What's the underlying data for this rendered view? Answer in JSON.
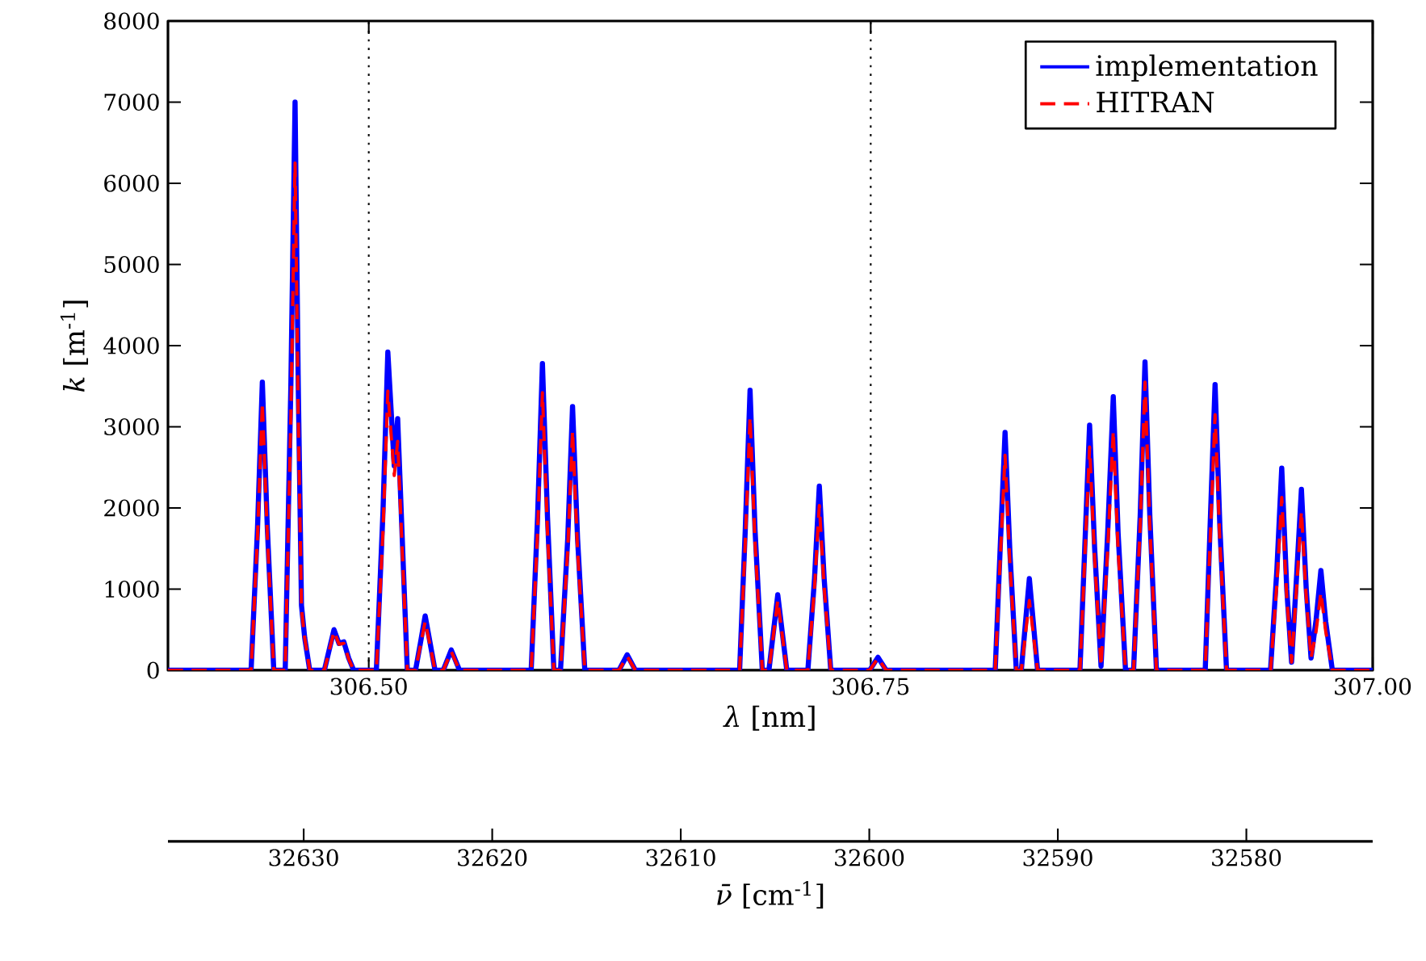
{
  "chart_data": {
    "type": "line",
    "xlabel": "*λ* [nm]",
    "ylabel": "*k* [m$^{-1}$]",
    "x2label": "*ν̄* [cm$^{-1}$]",
    "xlim": [
      306.4,
      307.0
    ],
    "ylim": [
      0,
      8000
    ],
    "xticks": [
      {
        "value": 306.5,
        "label": "306.50"
      },
      {
        "value": 306.75,
        "label": "306.75"
      },
      {
        "value": 307.0,
        "label": "307.00"
      }
    ],
    "yticks": [
      0,
      1000,
      2000,
      3000,
      4000,
      5000,
      6000,
      7000,
      8000
    ],
    "x2lim": [
      32637.2,
      32573.3
    ],
    "x2ticks": [
      32630,
      32620,
      32610,
      32600,
      32590,
      32580
    ],
    "legend": "top right",
    "ref_lines": [
      {
        "axis": "x",
        "value": 306.5,
        "color": "#000000",
        "line_style": "dotted"
      },
      {
        "axis": "x",
        "value": 306.75,
        "color": "#000000",
        "line_style": "dotted"
      }
    ],
    "x": [
      306.4,
      306.4414,
      306.4446,
      306.447,
      306.4495,
      306.4527,
      306.4584,
      306.4612,
      306.4633,
      306.4649,
      306.4665,
      306.4681,
      306.4706,
      306.4779,
      306.4803,
      306.4827,
      306.4852,
      306.4876,
      306.49,
      306.4925,
      306.5038,
      306.5071,
      306.5095,
      306.5127,
      306.5144,
      306.5168,
      306.5192,
      306.5233,
      306.5257,
      306.5281,
      306.5306,
      306.533,
      306.5371,
      306.5411,
      306.5452,
      306.5809,
      306.5841,
      306.5865,
      306.589,
      306.5922,
      306.5955,
      306.5991,
      306.6015,
      306.604,
      306.6076,
      306.6246,
      306.6287,
      306.6328,
      306.6847,
      306.6875,
      306.6899,
      306.6924,
      306.696,
      306.6993,
      306.7037,
      306.7082,
      306.7187,
      306.722,
      306.7244,
      306.7268,
      306.7301,
      306.7495,
      306.7536,
      306.7577,
      306.812,
      306.8144,
      306.8169,
      306.8193,
      306.8225,
      306.825,
      306.829,
      306.8331,
      306.8542,
      306.8566,
      306.859,
      306.8615,
      306.8647,
      306.868,
      306.8708,
      306.8732,
      306.8769,
      306.8809,
      306.8842,
      306.8866,
      306.889,
      306.8923,
      306.9166,
      306.919,
      306.9215,
      306.9239,
      306.9272,
      306.9491,
      306.9523,
      306.9547,
      306.9572,
      306.9596,
      306.962,
      306.9645,
      306.9669,
      306.9693,
      306.9718,
      306.9742,
      306.9766,
      306.9799,
      307.0
    ],
    "series": [
      {
        "name": "implementation",
        "color": "#0000ff",
        "line_style": "solid",
        "values": [
          0,
          0,
          1750,
          3550,
          1750,
          0,
          0,
          3500,
          7000,
          3500,
          800,
          400,
          0,
          0,
          250,
          500,
          330,
          350,
          150,
          0,
          0,
          1960,
          3920,
          2520,
          3100,
          1550,
          0,
          0,
          330,
          670,
          330,
          0,
          0,
          250,
          0,
          0,
          1900,
          3780,
          1900,
          0,
          0,
          1620,
          3250,
          1620,
          0,
          0,
          190,
          0,
          0,
          1720,
          3450,
          1720,
          0,
          0,
          930,
          0,
          0,
          1130,
          2270,
          1130,
          0,
          0,
          160,
          0,
          0,
          1460,
          2930,
          1460,
          0,
          0,
          1130,
          0,
          0,
          1510,
          3020,
          1510,
          50,
          1690,
          3370,
          1690,
          0,
          0,
          1900,
          3800,
          1900,
          0,
          0,
          1760,
          3520,
          1760,
          0,
          0,
          1250,
          2490,
          1000,
          100,
          1120,
          2230,
          1000,
          150,
          620,
          1230,
          600,
          0,
          0
        ]
      },
      {
        "name": "HITRAN",
        "color": "#ff0000",
        "line_style": "dashed",
        "values": [
          0,
          0,
          1650,
          3300,
          1650,
          0,
          0,
          3120,
          6250,
          3120,
          750,
          400,
          0,
          0,
          240,
          480,
          320,
          330,
          140,
          0,
          0,
          1720,
          3440,
          2400,
          2820,
          1410,
          0,
          0,
          300,
          600,
          300,
          0,
          0,
          230,
          0,
          0,
          1710,
          3420,
          1710,
          0,
          0,
          1480,
          2950,
          1480,
          0,
          0,
          170,
          0,
          0,
          1560,
          3120,
          1560,
          0,
          0,
          860,
          0,
          0,
          1020,
          2030,
          1020,
          0,
          0,
          150,
          0,
          0,
          1320,
          2650,
          1320,
          0,
          0,
          860,
          0,
          0,
          1380,
          2750,
          1380,
          50,
          1480,
          2950,
          1480,
          0,
          0,
          1780,
          3550,
          1780,
          0,
          0,
          1580,
          3150,
          1580,
          0,
          0,
          1070,
          2130,
          900,
          100,
          980,
          1960,
          900,
          150,
          480,
          960,
          480,
          0,
          0
        ]
      }
    ]
  }
}
